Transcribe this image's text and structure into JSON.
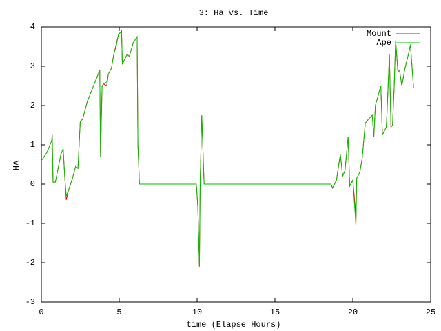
{
  "chart_data": {
    "type": "line",
    "title": "3: Ha vs. Time",
    "x_label": "time (Elapse Hours)",
    "y_label": "HA",
    "xlim": [
      0,
      25
    ],
    "xticks": [
      0,
      5,
      10,
      15,
      20,
      25
    ],
    "ylim": [
      -3,
      4
    ],
    "yticks": [
      -3,
      -2,
      -1,
      0,
      1,
      2,
      3,
      4
    ],
    "legend": "top-right",
    "x": [
      0,
      0.35,
      0.66,
      0.7,
      0.75,
      0.9,
      1.1,
      1.25,
      1.4,
      1.5,
      1.6,
      1.75,
      2.0,
      2.2,
      2.35,
      2.5,
      2.65,
      2.95,
      3.3,
      3.55,
      3.75,
      3.8,
      3.9,
      4.0,
      4.2,
      4.3,
      4.5,
      4.65,
      4.8,
      4.95,
      5.15,
      5.2,
      5.5,
      5.65,
      5.9,
      6.15,
      6.2,
      6.3,
      9.95,
      10.05,
      10.15,
      10.2,
      10.3,
      10.45,
      18.6,
      18.7,
      18.95,
      19.1,
      19.2,
      19.35,
      19.5,
      19.7,
      19.8,
      20.0,
      20.15,
      20.2,
      20.25,
      20.45,
      20.6,
      20.8,
      21.0,
      21.25,
      21.35,
      21.45,
      21.8,
      21.9,
      22.15,
      22.2,
      22.35,
      22.45,
      22.55,
      22.65,
      22.75,
      22.9,
      23.0,
      23.15,
      23.35,
      23.6,
      23.7,
      23.8,
      23.9
    ],
    "series": [
      {
        "name": "Mount",
        "color": "#ff0000",
        "values": [
          0.6,
          0.8,
          1.1,
          1.25,
          0.05,
          0.05,
          0.45,
          0.75,
          0.9,
          0.2,
          -0.4,
          -0.15,
          0.15,
          0.45,
          0.4,
          1.6,
          1.65,
          2.1,
          2.45,
          2.7,
          2.9,
          0.7,
          2.5,
          2.55,
          2.5,
          2.8,
          2.95,
          3.3,
          3.55,
          3.8,
          3.9,
          3.05,
          3.3,
          3.25,
          3.6,
          3.75,
          1.0,
          0,
          0,
          -0.6,
          -2.1,
          0.1,
          1.75,
          0,
          0,
          -0.1,
          0.1,
          0.5,
          0.75,
          0.2,
          0.35,
          1.2,
          -0.05,
          0.1,
          -0.55,
          -1.05,
          0.15,
          0.3,
          0.65,
          1.55,
          1.65,
          1.75,
          1.2,
          2.0,
          2.5,
          1.25,
          1.45,
          1.85,
          3.3,
          1.45,
          1.5,
          2.4,
          3.65,
          2.85,
          2.9,
          2.5,
          2.95,
          3.35,
          3.55,
          3.0,
          2.45
        ]
      },
      {
        "name": "Ape",
        "color": "#00c000",
        "values": [
          0.6,
          0.8,
          1.1,
          1.25,
          0.05,
          0.05,
          0.45,
          0.75,
          0.9,
          0.2,
          -0.3,
          -0.15,
          0.15,
          0.45,
          0.4,
          1.6,
          1.65,
          2.1,
          2.45,
          2.7,
          2.9,
          0.7,
          2.5,
          2.55,
          2.6,
          2.8,
          2.95,
          3.3,
          3.5,
          3.8,
          3.9,
          3.05,
          3.3,
          3.25,
          3.6,
          3.75,
          1.0,
          0,
          0,
          -0.6,
          -2.1,
          0.1,
          1.75,
          0,
          0,
          -0.1,
          0.1,
          0.5,
          0.75,
          0.2,
          0.35,
          1.2,
          -0.05,
          0.1,
          -0.75,
          -1.05,
          0.15,
          0.3,
          0.65,
          1.55,
          1.65,
          1.75,
          1.2,
          2.0,
          2.5,
          1.25,
          1.45,
          1.85,
          3.3,
          1.45,
          1.5,
          2.4,
          3.65,
          2.85,
          2.9,
          2.5,
          2.95,
          3.35,
          3.55,
          3.0,
          2.45
        ]
      }
    ]
  }
}
